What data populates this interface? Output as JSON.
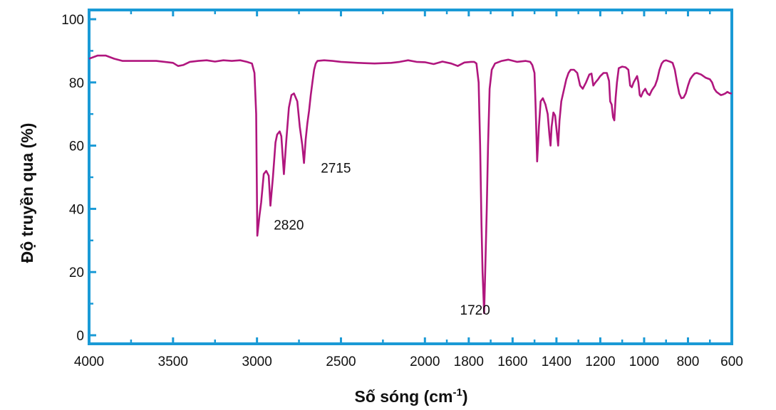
{
  "chart_data": {
    "type": "line",
    "xlabel": "Số sóng (cm",
    "xlabel_sup": "-1",
    "xlabel_close": ")",
    "ylabel": "Độ truyền qua (%)",
    "ylim": [
      0,
      100
    ],
    "y_ticks": [
      0,
      20,
      40,
      60,
      80,
      100
    ],
    "x_ticks": [
      4000,
      3500,
      3000,
      2500,
      2000,
      1800,
      1600,
      1400,
      1200,
      1000,
      800,
      600
    ],
    "x_axis_segments": [
      [
        4000,
        2000,
        0,
        0.5225
      ],
      [
        2000,
        600,
        0.5225,
        1
      ]
    ],
    "grid": false,
    "colors": {
      "frame": "#1a9ad6",
      "line": "#b0167e"
    },
    "annotations": [
      {
        "text": "2715",
        "x": 2620,
        "y": 51.5
      },
      {
        "text": "2820",
        "x": 2900,
        "y": 33.5
      },
      {
        "text": "1720",
        "x": 1840,
        "y": 6.5
      }
    ],
    "series": [
      {
        "points": [
          [
            4000,
            87.5
          ],
          [
            3950,
            88.5
          ],
          [
            3900,
            88.5
          ],
          [
            3850,
            87.5
          ],
          [
            3800,
            86.8
          ],
          [
            3700,
            86.8
          ],
          [
            3600,
            86.8
          ],
          [
            3500,
            86.2
          ],
          [
            3470,
            85.2
          ],
          [
            3440,
            85.5
          ],
          [
            3400,
            86.5
          ],
          [
            3350,
            86.8
          ],
          [
            3300,
            87.0
          ],
          [
            3250,
            86.6
          ],
          [
            3200,
            87.0
          ],
          [
            3150,
            86.8
          ],
          [
            3100,
            87.0
          ],
          [
            3060,
            86.5
          ],
          [
            3030,
            86.0
          ],
          [
            3015,
            83.0
          ],
          [
            3005,
            70.0
          ],
          [
            2998,
            31.5
          ],
          [
            2985,
            38.0
          ],
          [
            2975,
            42.0
          ],
          [
            2960,
            51.0
          ],
          [
            2945,
            52.0
          ],
          [
            2930,
            50.5
          ],
          [
            2920,
            41.0
          ],
          [
            2905,
            50.0
          ],
          [
            2890,
            61.0
          ],
          [
            2880,
            63.5
          ],
          [
            2865,
            64.5
          ],
          [
            2855,
            63.0
          ],
          [
            2840,
            51.0
          ],
          [
            2825,
            62.0
          ],
          [
            2810,
            72.0
          ],
          [
            2795,
            76.0
          ],
          [
            2780,
            76.5
          ],
          [
            2760,
            74.0
          ],
          [
            2745,
            66.0
          ],
          [
            2730,
            60.0
          ],
          [
            2720,
            54.5
          ],
          [
            2710,
            62.0
          ],
          [
            2700,
            67.0
          ],
          [
            2690,
            71.0
          ],
          [
            2680,
            76.0
          ],
          [
            2670,
            80.0
          ],
          [
            2660,
            84.0
          ],
          [
            2650,
            86.0
          ],
          [
            2640,
            86.8
          ],
          [
            2600,
            87.0
          ],
          [
            2550,
            86.8
          ],
          [
            2500,
            86.5
          ],
          [
            2400,
            86.2
          ],
          [
            2300,
            86.0
          ],
          [
            2200,
            86.2
          ],
          [
            2150,
            86.5
          ],
          [
            2100,
            87.0
          ],
          [
            2050,
            86.5
          ],
          [
            2000,
            86.4
          ],
          [
            1960,
            85.8
          ],
          [
            1920,
            86.6
          ],
          [
            1880,
            86.0
          ],
          [
            1850,
            85.2
          ],
          [
            1820,
            86.3
          ],
          [
            1790,
            86.5
          ],
          [
            1775,
            86.5
          ],
          [
            1765,
            86.0
          ],
          [
            1755,
            80.0
          ],
          [
            1748,
            60.0
          ],
          [
            1742,
            35.0
          ],
          [
            1737,
            20.0
          ],
          [
            1730,
            7.0
          ],
          [
            1725,
            20.0
          ],
          [
            1718,
            40.0
          ],
          [
            1712,
            60.0
          ],
          [
            1705,
            78.0
          ],
          [
            1695,
            84.0
          ],
          [
            1680,
            86.0
          ],
          [
            1650,
            86.8
          ],
          [
            1620,
            87.2
          ],
          [
            1580,
            86.5
          ],
          [
            1540,
            86.8
          ],
          [
            1520,
            86.5
          ],
          [
            1510,
            85.5
          ],
          [
            1500,
            83.0
          ],
          [
            1495,
            72.0
          ],
          [
            1488,
            55.0
          ],
          [
            1480,
            66.0
          ],
          [
            1472,
            74.0
          ],
          [
            1462,
            75.0
          ],
          [
            1450,
            73.0
          ],
          [
            1440,
            70.0
          ],
          [
            1432,
            63.5
          ],
          [
            1427,
            60.0
          ],
          [
            1422,
            66.0
          ],
          [
            1414,
            70.5
          ],
          [
            1406,
            69.5
          ],
          [
            1398,
            64.0
          ],
          [
            1392,
            60.0
          ],
          [
            1386,
            68.0
          ],
          [
            1378,
            74.0
          ],
          [
            1368,
            77.0
          ],
          [
            1355,
            81.0
          ],
          [
            1345,
            83.0
          ],
          [
            1335,
            84.0
          ],
          [
            1320,
            84.0
          ],
          [
            1305,
            83.0
          ],
          [
            1292,
            79.0
          ],
          [
            1280,
            78.0
          ],
          [
            1265,
            80.0
          ],
          [
            1250,
            82.5
          ],
          [
            1240,
            82.8
          ],
          [
            1232,
            79.0
          ],
          [
            1222,
            80.0
          ],
          [
            1210,
            81.0
          ],
          [
            1200,
            82.0
          ],
          [
            1185,
            83.0
          ],
          [
            1170,
            83.0
          ],
          [
            1160,
            80.5
          ],
          [
            1155,
            74.0
          ],
          [
            1148,
            73.0
          ],
          [
            1142,
            69.0
          ],
          [
            1136,
            68.0
          ],
          [
            1130,
            75.0
          ],
          [
            1124,
            80.0
          ],
          [
            1116,
            84.5
          ],
          [
            1100,
            85.0
          ],
          [
            1085,
            84.8
          ],
          [
            1072,
            84.0
          ],
          [
            1064,
            79.0
          ],
          [
            1056,
            78.5
          ],
          [
            1048,
            80.0
          ],
          [
            1040,
            81.0
          ],
          [
            1032,
            82.0
          ],
          [
            1026,
            80.0
          ],
          [
            1020,
            76.0
          ],
          [
            1014,
            75.5
          ],
          [
            1005,
            77.0
          ],
          [
            995,
            78.0
          ],
          [
            985,
            76.5
          ],
          [
            975,
            76.0
          ],
          [
            965,
            77.5
          ],
          [
            950,
            79.0
          ],
          [
            940,
            81.0
          ],
          [
            930,
            84.0
          ],
          [
            920,
            86.0
          ],
          [
            910,
            86.8
          ],
          [
            900,
            87.0
          ],
          [
            880,
            86.5
          ],
          [
            870,
            86.2
          ],
          [
            860,
            84.0
          ],
          [
            850,
            80.0
          ],
          [
            840,
            76.5
          ],
          [
            830,
            75.0
          ],
          [
            820,
            75.2
          ],
          [
            810,
            76.5
          ],
          [
            800,
            79.0
          ],
          [
            790,
            81.0
          ],
          [
            780,
            82.0
          ],
          [
            770,
            82.8
          ],
          [
            760,
            83.0
          ],
          [
            740,
            82.5
          ],
          [
            720,
            81.5
          ],
          [
            700,
            81.0
          ],
          [
            690,
            80.0
          ],
          [
            680,
            78.0
          ],
          [
            670,
            77.0
          ],
          [
            660,
            76.5
          ],
          [
            650,
            76.0
          ],
          [
            640,
            76.2
          ],
          [
            630,
            76.5
          ],
          [
            620,
            77.0
          ],
          [
            610,
            76.6
          ],
          [
            600,
            76.5
          ]
        ]
      }
    ]
  }
}
